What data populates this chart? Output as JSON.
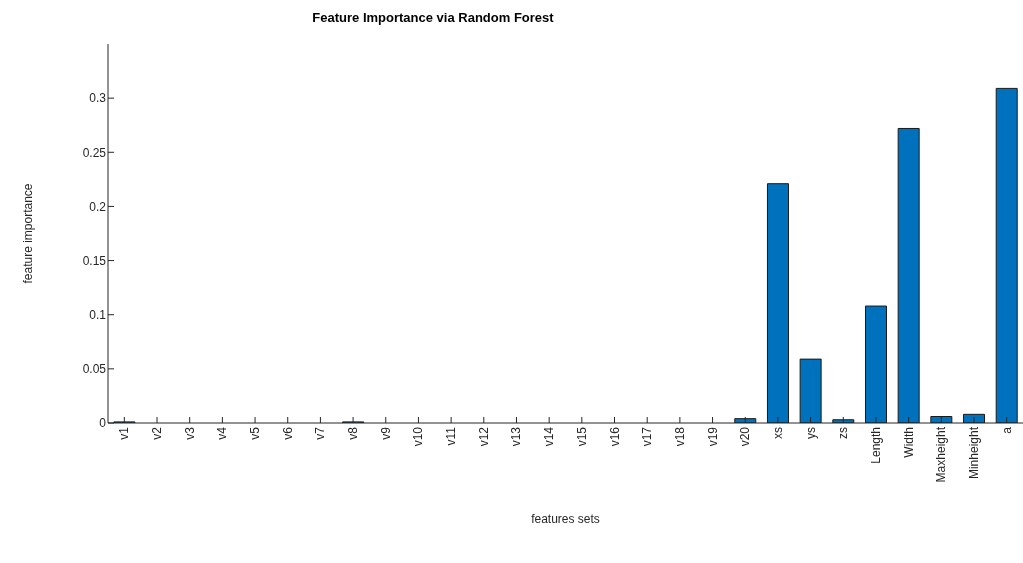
{
  "chart_data": {
    "type": "bar",
    "title": "Feature Importance via Random Forest",
    "xlabel": "features sets",
    "ylabel": "feature importance",
    "categories": [
      "v1",
      "v2",
      "v3",
      "v4",
      "v5",
      "v6",
      "v7",
      "v8",
      "v9",
      "v10",
      "v11",
      "v12",
      "v13",
      "v14",
      "v15",
      "v16",
      "v17",
      "v18",
      "v19",
      "v20",
      "xs",
      "ys",
      "zs",
      "Length",
      "Width",
      "Maxheight",
      "Minheight",
      "a"
    ],
    "values": [
      0.001,
      0,
      0,
      0,
      0,
      0,
      0,
      0.001,
      0,
      0,
      0,
      0,
      0,
      0,
      0,
      0,
      0,
      0,
      0,
      0.004,
      0.221,
      0.059,
      0.003,
      0.108,
      0.272,
      0.006,
      0.008,
      0.309
    ],
    "color": "#0072bd",
    "ylim": [
      0,
      0.35
    ],
    "yticks": [
      0,
      0.05,
      0.1,
      0.15,
      0.2,
      0.25,
      0.3
    ],
    "grid": false
  }
}
